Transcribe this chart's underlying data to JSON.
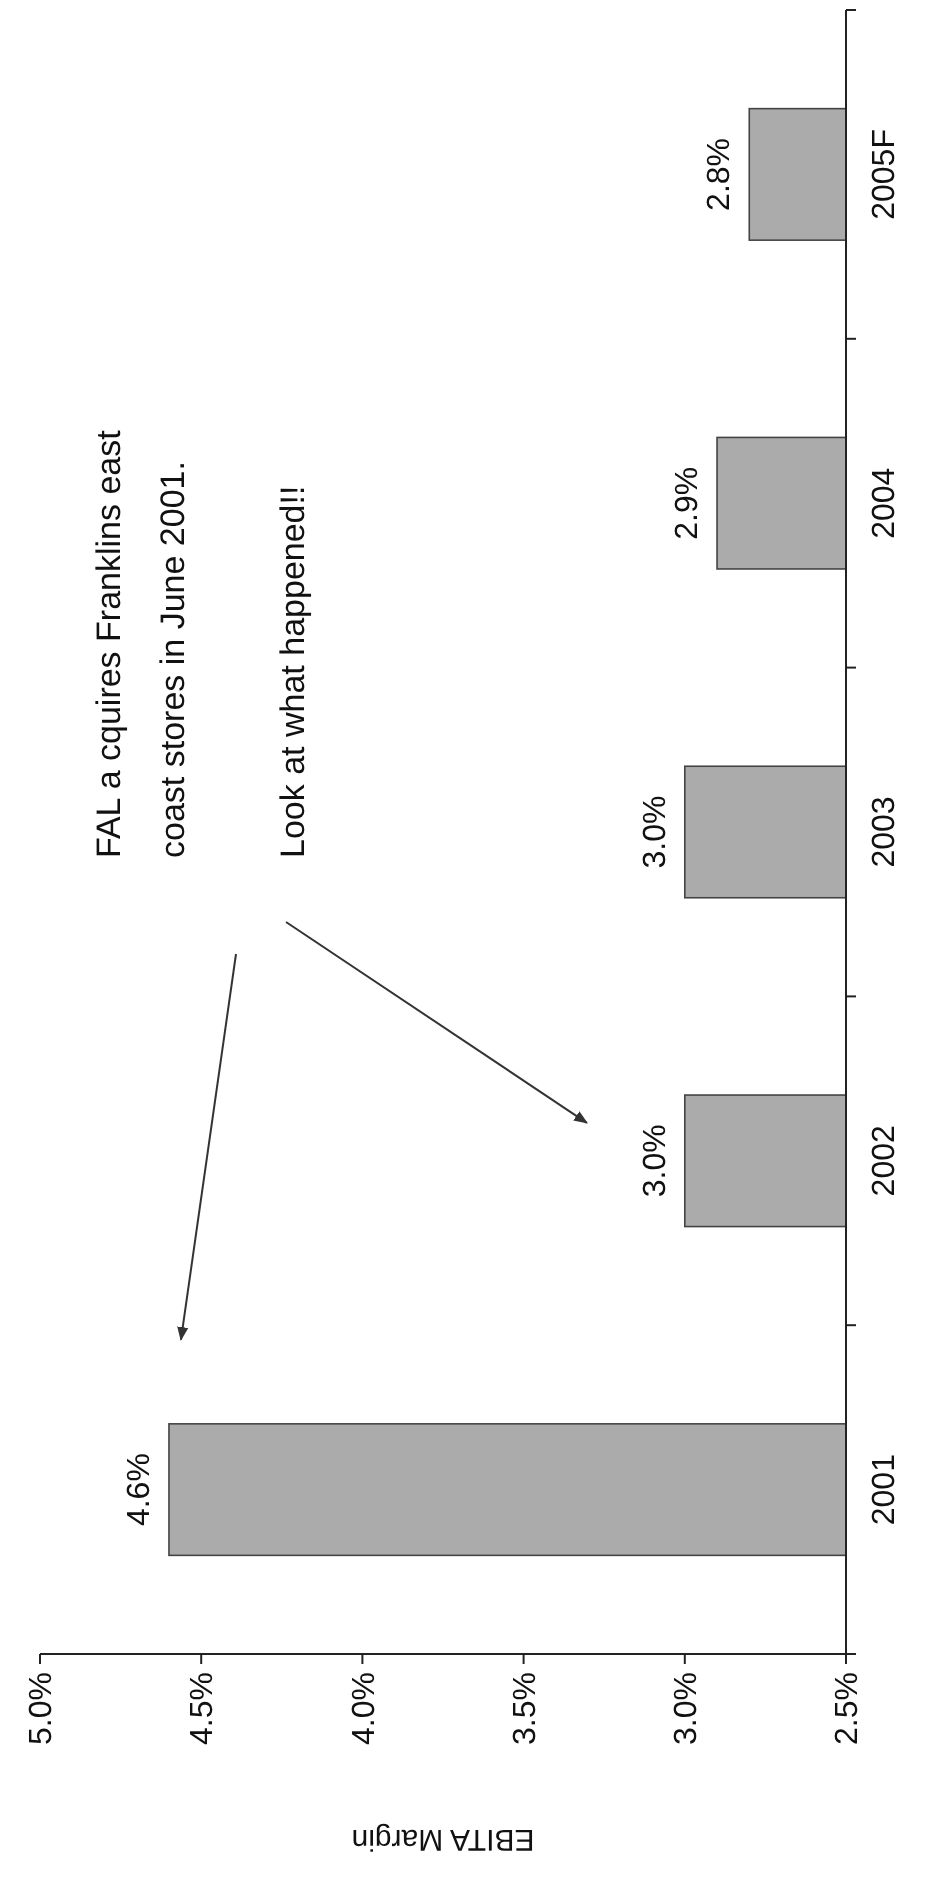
{
  "chart_data": {
    "type": "bar",
    "orientation": "horizontal",
    "xlabel": "EBITA Margin",
    "categories": [
      "2005F",
      "2004",
      "2003",
      "2002",
      "2001"
    ],
    "values": [
      2.8,
      2.9,
      3.0,
      3.0,
      4.6
    ],
    "value_labels": [
      "2.8%",
      "2.9%",
      "3.0%",
      "3.0%",
      "4.6%"
    ],
    "color": "#ababab",
    "xlim": [
      5.0,
      2.5
    ],
    "xticks": [
      {
        "value": 5.0,
        "label": "5.0%"
      },
      {
        "value": 4.5,
        "label": "4.5%"
      },
      {
        "value": 4.0,
        "label": "4.0%"
      },
      {
        "value": 3.5,
        "label": "3.5%"
      },
      {
        "value": 3.0,
        "label": "3.0%"
      },
      {
        "value": 2.5,
        "label": "2.5%"
      }
    ],
    "annotations": [
      "FAL a cquires Franklins east coast stores in June 2001.",
      "Look at what happened!!"
    ]
  }
}
